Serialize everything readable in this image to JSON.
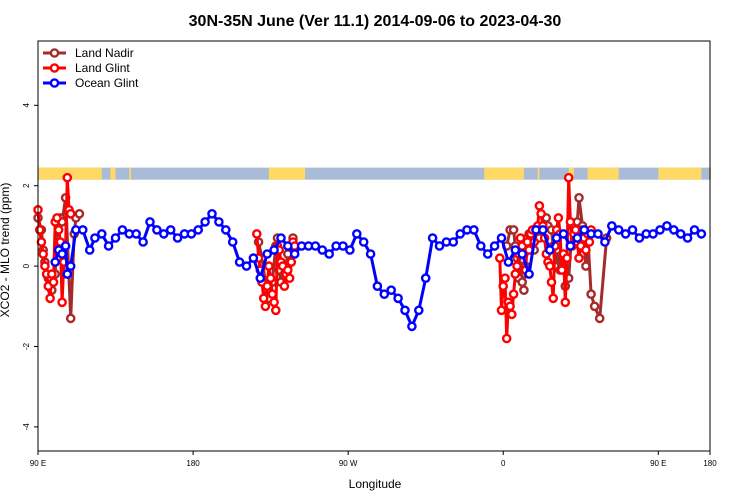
{
  "chart_data": {
    "type": "line",
    "title": "30N-35N June (Ver 11.1)   2014-09-06 to 2023-04-30",
    "xlabel": "Longitude",
    "ylabel": "XCO2 - MLO trend (ppm)",
    "xlim": [
      90,
      480
    ],
    "ylim": [
      -4.6,
      5.6
    ],
    "x_ticks": [
      {
        "value": 90,
        "label": "90 E"
      },
      {
        "value": 180,
        "label": "180"
      },
      {
        "value": 270,
        "label": "90 W"
      },
      {
        "value": 360,
        "label": "0"
      },
      {
        "value": 450,
        "label": "90 E"
      },
      {
        "value": 480,
        "label": "180"
      }
    ],
    "y_ticks": [
      {
        "value": 4,
        "label": "4"
      },
      {
        "value": 2,
        "label": "2"
      },
      {
        "value": 0,
        "label": "0"
      },
      {
        "value": -2,
        "label": "-2"
      },
      {
        "value": -4,
        "label": "-4"
      }
    ],
    "grid": false,
    "legend_position": "top-left",
    "land_band": {
      "y_bottom": 2.15,
      "y_top": 2.45,
      "land_color": "#ffd966",
      "ocean_color": "#a8bcd8",
      "land_ranges": [
        [
          90,
          127
        ],
        [
          132,
          135
        ],
        [
          143,
          144
        ],
        [
          224,
          245
        ],
        [
          349,
          372
        ],
        [
          380,
          381
        ],
        [
          398,
          401
        ],
        [
          409,
          427
        ],
        [
          450,
          475
        ],
        [
          480,
          480
        ]
      ]
    },
    "series": [
      {
        "name": "Land Nadir",
        "color": "#a52a2a",
        "x": [
          90,
          92,
          93,
          94,
          96,
          98,
          100,
          101,
          103,
          104,
          106,
          109,
          111,
          112,
          114,
          218,
          220,
          222,
          223,
          224,
          226,
          228,
          229,
          230,
          231,
          233,
          235,
          238,
          362,
          364,
          366,
          367,
          368,
          369,
          370,
          371,
          372,
          373,
          374,
          375,
          376,
          377,
          378,
          379,
          381,
          383,
          385,
          386,
          388,
          389,
          390,
          391,
          393,
          395,
          396,
          398,
          400,
          401,
          403,
          404,
          406,
          408,
          409,
          411,
          413,
          416,
          420
        ],
        "y": [
          1.2,
          0.9,
          0.4,
          0.1,
          -0.3,
          -0.6,
          -0.2,
          1.1,
          1.2,
          1.1,
          1.7,
          -1.3,
          0.8,
          1.2,
          1.3,
          0.6,
          0.2,
          -0.4,
          -0.6,
          -0.8,
          -0.4,
          0.5,
          0.7,
          -0.1,
          -0.4,
          -0.2,
          0.3,
          0.7,
          0.5,
          0.9,
          0.9,
          0.5,
          0.2,
          -0.3,
          0.0,
          -0.4,
          -0.6,
          0.0,
          0.7,
          0.8,
          0.5,
          0.6,
          0.4,
          0.9,
          0.7,
          1.0,
          1.2,
          1.0,
          0.9,
          0.5,
          0.0,
          0.4,
          -0.1,
          0.2,
          -0.5,
          -0.3,
          1.0,
          0.8,
          1.1,
          1.7,
          1.0,
          0.0,
          0.8,
          -0.7,
          -1.0,
          -1.3,
          0.7
        ]
      },
      {
        "name": "Land Glint",
        "color": "#ff0000",
        "x": [
          90,
          91,
          92,
          93,
          94,
          95,
          96,
          97,
          98,
          99,
          100,
          101,
          102,
          103,
          104,
          105,
          106,
          107,
          108,
          109,
          217,
          218,
          219,
          220,
          221,
          222,
          223,
          224,
          225,
          226,
          227,
          228,
          229,
          230,
          231,
          232,
          233,
          234,
          235,
          236,
          237,
          238,
          239,
          358,
          359,
          360,
          361,
          362,
          363,
          364,
          365,
          366,
          367,
          368,
          369,
          370,
          371,
          372,
          373,
          374,
          375,
          376,
          377,
          378,
          379,
          380,
          381,
          382,
          383,
          384,
          385,
          386,
          387,
          388,
          389,
          390,
          391,
          392,
          393,
          394,
          395,
          396,
          397,
          398,
          399,
          400,
          401,
          402,
          403,
          404,
          405,
          406,
          407,
          408,
          409,
          410,
          411
        ],
        "y": [
          1.4,
          0.9,
          0.6,
          0.3,
          0.0,
          -0.2,
          -0.5,
          -0.8,
          -0.2,
          -0.4,
          1.1,
          1.2,
          0.9,
          0.6,
          -0.9,
          0.1,
          0.5,
          2.2,
          1.4,
          1.3,
          0.8,
          0.2,
          -0.1,
          -0.4,
          -0.8,
          -1.0,
          -0.5,
          0.0,
          -0.3,
          -0.7,
          -0.9,
          -1.1,
          0.5,
          0.4,
          0.1,
          0.0,
          -0.5,
          -0.2,
          -0.1,
          -0.3,
          0.1,
          0.6,
          0.5,
          0.2,
          -1.1,
          -0.5,
          -0.3,
          -1.8,
          -0.9,
          -1.0,
          -1.2,
          -0.7,
          -0.2,
          0.0,
          0.3,
          0.7,
          0.5,
          0.3,
          -0.1,
          0.6,
          0.4,
          0.8,
          0.9,
          0.6,
          0.9,
          1.0,
          1.5,
          1.3,
          1.0,
          0.7,
          0.3,
          0.1,
          0.0,
          -0.4,
          -0.8,
          0.5,
          0.9,
          1.2,
          0.8,
          -0.1,
          0.3,
          -0.9,
          0.2,
          2.2,
          1.1,
          0.5,
          0.8,
          0.9,
          0.6,
          0.2,
          0.5,
          0.9,
          0.7,
          0.4,
          0.8,
          0.6,
          0.9
        ]
      },
      {
        "name": "Ocean Glint",
        "color": "#0000ff",
        "x": [
          100,
          102,
          104,
          106,
          107,
          109,
          112,
          116,
          120,
          123,
          127,
          131,
          135,
          139,
          143,
          147,
          151,
          155,
          159,
          163,
          167,
          171,
          175,
          179,
          183,
          187,
          191,
          195,
          199,
          203,
          207,
          211,
          215,
          219,
          223,
          227,
          231,
          235,
          239,
          243,
          247,
          251,
          255,
          259,
          263,
          267,
          271,
          275,
          279,
          283,
          287,
          291,
          295,
          299,
          303,
          307,
          311,
          315,
          319,
          323,
          327,
          331,
          335,
          339,
          343,
          347,
          351,
          355,
          359,
          363,
          367,
          371,
          375,
          379,
          383,
          387,
          391,
          395,
          399,
          403,
          407,
          411,
          415,
          419,
          423,
          427,
          431,
          435,
          439,
          443,
          447,
          451,
          455,
          459,
          463,
          467,
          471,
          475
        ],
        "y": [
          0.1,
          0.4,
          0.3,
          0.5,
          -0.2,
          0.0,
          0.9,
          0.9,
          0.4,
          0.7,
          0.8,
          0.5,
          0.7,
          0.9,
          0.8,
          0.8,
          0.6,
          1.1,
          0.9,
          0.8,
          0.9,
          0.7,
          0.8,
          0.8,
          0.9,
          1.1,
          1.3,
          1.1,
          0.9,
          0.6,
          0.1,
          0.0,
          0.2,
          -0.3,
          0.3,
          0.4,
          0.7,
          0.5,
          0.3,
          0.5,
          0.5,
          0.5,
          0.4,
          0.3,
          0.5,
          0.5,
          0.4,
          0.8,
          0.6,
          0.3,
          -0.5,
          -0.7,
          -0.6,
          -0.8,
          -1.1,
          -1.5,
          -1.1,
          -0.3,
          0.7,
          0.5,
          0.6,
          0.6,
          0.8,
          0.9,
          0.9,
          0.5,
          0.3,
          0.5,
          0.7,
          0.1,
          0.4,
          0.3,
          -0.2,
          0.9,
          0.9,
          0.4,
          0.7,
          0.8,
          0.5,
          0.7,
          0.9,
          0.8,
          0.8,
          0.6,
          1.0,
          0.9,
          0.8,
          0.9,
          0.7,
          0.8,
          0.8,
          0.9,
          1.0,
          0.9,
          0.8,
          0.7,
          0.9,
          0.8
        ]
      }
    ]
  }
}
